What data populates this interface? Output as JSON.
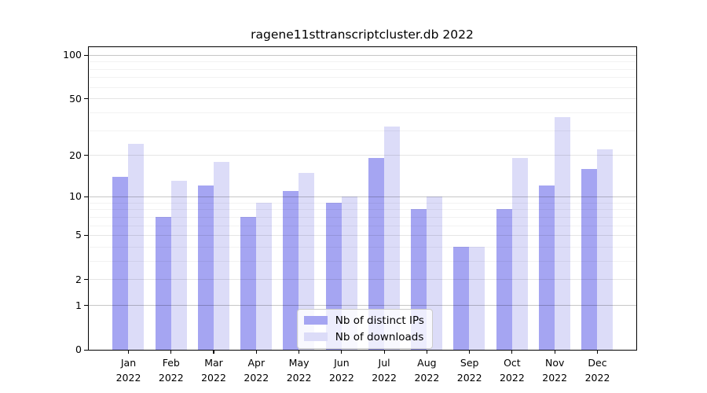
{
  "title": "ragene11sttranscriptcluster.db 2022",
  "chart_data": {
    "type": "bar",
    "title": "ragene11sttranscriptcluster.db 2022",
    "scale": "log10(1+value), 0 at baseline",
    "categories": [
      "Jan",
      "Feb",
      "Mar",
      "Apr",
      "May",
      "Jun",
      "Jul",
      "Aug",
      "Sep",
      "Oct",
      "Nov",
      "Dec"
    ],
    "year_label": "2022",
    "series": [
      {
        "name": "Nb of distinct IPs",
        "color": "#a5a5f2",
        "values": [
          14,
          7,
          12,
          7,
          11,
          9,
          19,
          8,
          4,
          8,
          12,
          16
        ]
      },
      {
        "name": "Nb of downloads",
        "color": "#dcdcf8",
        "values": [
          24,
          13,
          18,
          9,
          15,
          10,
          32,
          10,
          4,
          19,
          37,
          22
        ]
      }
    ],
    "y_ticks": [
      100,
      50,
      20,
      10,
      5,
      2,
      1,
      0
    ],
    "gridlines": {
      "major": [
        1,
        10,
        100
      ],
      "mid": [
        2,
        5,
        20,
        50
      ],
      "minor": [
        3,
        4,
        6,
        7,
        8,
        9,
        30,
        40,
        60,
        70,
        80,
        90
      ]
    },
    "ylim": [
      0,
      113
    ],
    "xlabel": "",
    "ylabel": "",
    "legend_position": "lower center",
    "grid": "on"
  },
  "legend": {
    "items": [
      {
        "label": "Nb of distinct IPs",
        "color": "#a5a5f2"
      },
      {
        "label": "Nb of downloads",
        "color": "#dcdcf8"
      }
    ]
  }
}
